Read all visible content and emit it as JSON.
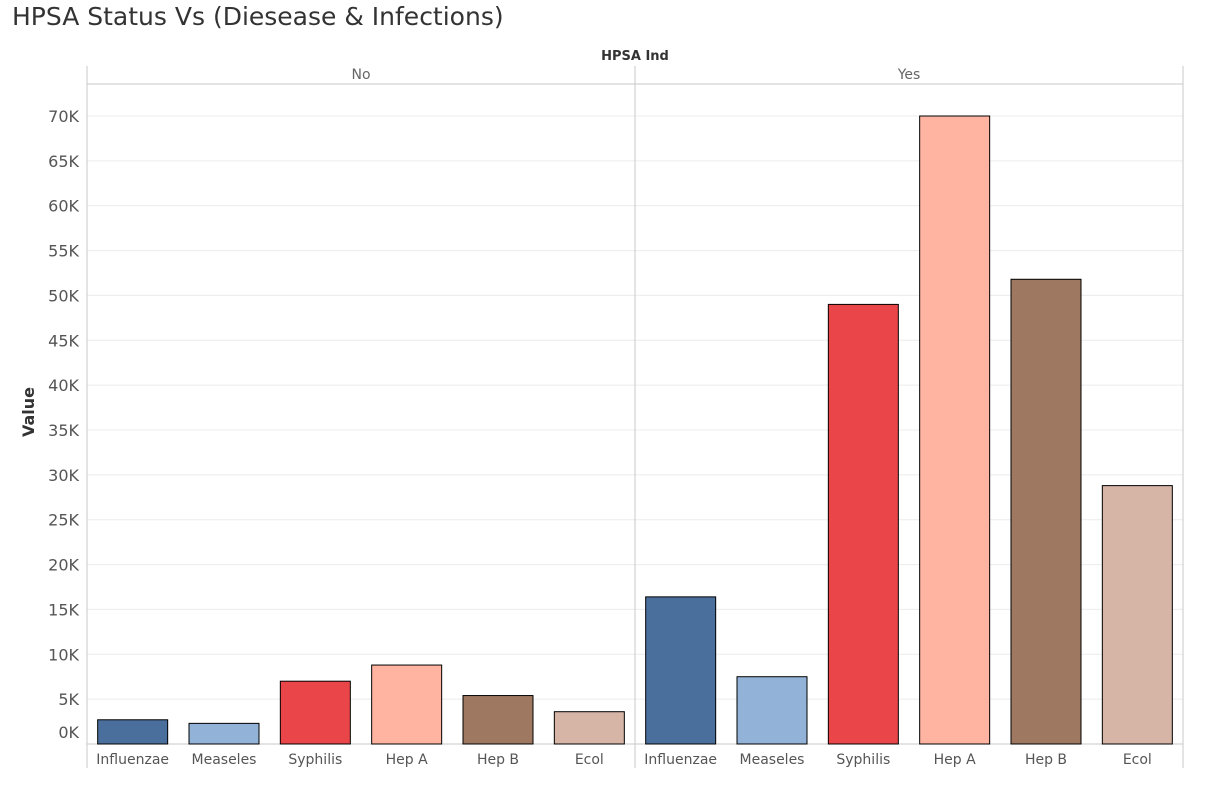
{
  "chart_data": {
    "type": "bar",
    "title": "HPSA Status Vs (Diesease & Infections)",
    "column_header": "HPSA Ind",
    "ylabel": "Value",
    "ylim": [
      0,
      70000
    ],
    "yticks": [
      0,
      5000,
      10000,
      15000,
      20000,
      25000,
      30000,
      35000,
      40000,
      45000,
      50000,
      55000,
      60000,
      65000,
      70000
    ],
    "ytick_labels": [
      "0K",
      "5K",
      "10K",
      "15K",
      "20K",
      "25K",
      "30K",
      "35K",
      "40K",
      "45K",
      "50K",
      "55K",
      "60K",
      "65K",
      "70K"
    ],
    "grid": true,
    "categories": [
      "Influenzae",
      "Measeles",
      "Syphilis",
      "Hep A",
      "Hep B",
      "Ecol"
    ],
    "colors": [
      "#4a6f9c",
      "#92b2d8",
      "#ea4549",
      "#feb4a1",
      "#9e7860",
      "#d6b5a6"
    ],
    "panels": [
      {
        "label": "No",
        "values": [
          2700,
          2300,
          7000,
          8800,
          5400,
          3600
        ]
      },
      {
        "label": "Yes",
        "values": [
          16400,
          7500,
          49000,
          70000,
          51800,
          28800
        ]
      }
    ]
  }
}
